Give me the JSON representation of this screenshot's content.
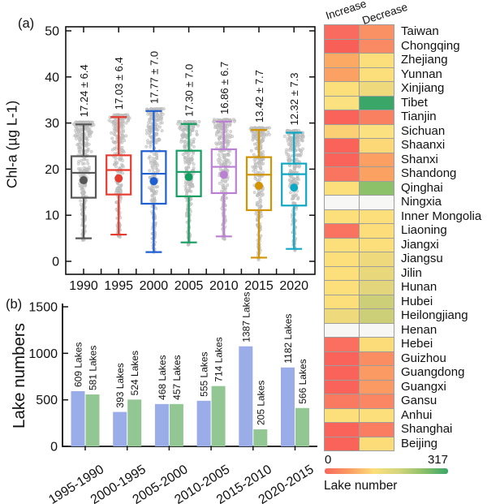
{
  "panels": {
    "a_label": "(a)",
    "b_label": "(b)"
  },
  "chart_data": [
    {
      "type": "box",
      "panel": "a",
      "ylabel": "Chl-a (µg L-1)",
      "ylim": [
        0,
        50
      ],
      "y_ticks": [
        0,
        10,
        20,
        30,
        40,
        50
      ],
      "categories": [
        "1990",
        "1995",
        "2000",
        "2005",
        "2010",
        "2015",
        "2020"
      ],
      "annotations": [
        "17.24 ± 6.4",
        "17.03 ± 6.4",
        "17.77 ± 7.0",
        "17.30 ± 7.0",
        "16.86 ± 6.7",
        "13.42 ± 7.7",
        "12.32 ± 7.3"
      ],
      "annotation_color": "#2b3fd1",
      "scatter_color": "#c6c6c6",
      "series": [
        {
          "year": "1990",
          "color": "#575757",
          "whisker_low": 5.0,
          "q1": 13.8,
          "median": 19.2,
          "q3": 22.8,
          "whisker_high": 29.7,
          "mean": 17.6
        },
        {
          "year": "1995",
          "color": "#e63c30",
          "whisker_low": 5.8,
          "q1": 14.5,
          "median": 19.8,
          "q3": 23.0,
          "whisker_high": 31.3,
          "mean": 18.0
        },
        {
          "year": "2000",
          "color": "#1e5fd2",
          "whisker_low": 2.0,
          "q1": 12.5,
          "median": 19.0,
          "q3": 23.9,
          "whisker_high": 32.6,
          "mean": 17.4
        },
        {
          "year": "2005",
          "color": "#129e60",
          "whisker_low": 4.1,
          "q1": 14.1,
          "median": 19.4,
          "q3": 24.0,
          "whisker_high": 29.8,
          "mean": 18.3
        },
        {
          "year": "2010",
          "color": "#bb7fd4",
          "whisker_low": 5.4,
          "q1": 14.8,
          "median": 20.5,
          "q3": 24.3,
          "whisker_high": 30.3,
          "mean": 18.8
        },
        {
          "year": "2015",
          "color": "#d29400",
          "whisker_low": 0.8,
          "q1": 11.1,
          "median": 18.8,
          "q3": 22.6,
          "whisker_high": 28.5,
          "mean": 16.4
        },
        {
          "year": "2020",
          "color": "#0ea8c5",
          "whisker_low": 2.7,
          "q1": 12.1,
          "median": 18.9,
          "q3": 21.2,
          "whisker_high": 27.9,
          "mean": 16.0
        }
      ]
    },
    {
      "type": "bar",
      "panel": "b",
      "ylabel": "Lake numbers",
      "ylim": [
        0,
        1500
      ],
      "y_ticks": [
        0,
        500,
        1000,
        1500
      ],
      "categories": [
        "1995-1990",
        "2000-1995",
        "2005-2000",
        "2010-2005",
        "2015-2010",
        "2020-2015"
      ],
      "series": [
        {
          "name": "increase",
          "color": "#9bade9",
          "label_color": "#5a6ec9",
          "values": [
            609,
            393,
            468,
            555,
            1387,
            1182
          ],
          "labels": [
            "609 Lakes",
            "393 Lakes",
            "468 Lakes",
            "555 Lakes",
            "1387 Lakes",
            "1182 Lakes"
          ],
          "bar_plot_values": [
            593,
            370,
            455,
            490,
            1075,
            848
          ]
        },
        {
          "name": "decrease",
          "color": "#92c794",
          "label_color": "#37864a",
          "values": [
            581,
            524,
            457,
            714,
            205,
            566
          ],
          "labels": [
            "581 Lakes",
            "524 Lakes",
            "457 Lakes",
            "714 Lakes",
            "205 Lakes",
            "566 Lakes"
          ],
          "bar_plot_values": [
            558,
            503,
            455,
            648,
            183,
            412
          ]
        }
      ]
    },
    {
      "type": "heatmap",
      "columns": [
        "Increase",
        "Decrease"
      ],
      "rows": [
        "Taiwan",
        "Chongqing",
        "Zhejiang",
        "Yunnan",
        "Xinjiang",
        "Tibet",
        "Tianjin",
        "Sichuan",
        "Shaanxi",
        "Shanxi",
        "Shandong",
        "Qinghai",
        "Ningxia",
        "Inner Mongolia",
        "Liaoning",
        "Jiangxi",
        "Jiangsu",
        "Jilin",
        "Hunan",
        "Hubei",
        "Heilongjiang",
        "Henan",
        "Hebei",
        "Guizhou",
        "Guangdong",
        "Guangxi",
        "Gansu",
        "Anhui",
        "Shanghai",
        "Beijing"
      ],
      "cell_colors": [
        [
          "#f96b5e",
          "#fa9164"
        ],
        [
          "#f85f57",
          "#fa8a63"
        ],
        [
          "#fba963",
          "#fcdf7b"
        ],
        [
          "#fba163",
          "#fcdf7b"
        ],
        [
          "#fcdf7b",
          "#eed97d"
        ],
        [
          "#fce180",
          "#3aa768"
        ],
        [
          "#f9635a",
          "#fa8062"
        ],
        [
          "#fbd074",
          "#fce180"
        ],
        [
          "#f9635a",
          "#fcd976"
        ],
        [
          "#f9635a",
          "#fb9f63"
        ],
        [
          "#fa7560",
          "#fba263"
        ],
        [
          "#fcdf7b",
          "#8cc169"
        ],
        [
          "#f7f7f5",
          "#f7f7f5"
        ],
        [
          "#fcdf7b",
          "#fcdf7b"
        ],
        [
          "#fa7260",
          "#fcdd7a"
        ],
        [
          "#fcdf7b",
          "#fcdf7b"
        ],
        [
          "#fcdf7b",
          "#eed97d"
        ],
        [
          "#fcdf7b",
          "#e9d77c"
        ],
        [
          "#fcdf7b",
          "#e2d57b"
        ],
        [
          "#fcdf7b",
          "#cdcf78"
        ],
        [
          "#eed97d",
          "#cdcf78"
        ],
        [
          "#f7f7f5",
          "#f7f7f5"
        ],
        [
          "#fa6f5f",
          "#fcdc79"
        ],
        [
          "#f9635a",
          "#fa8e62"
        ],
        [
          "#f9635a",
          "#fb9b63"
        ],
        [
          "#f9635a",
          "#fb9b63"
        ],
        [
          "#fa7a61",
          "#fa8663"
        ],
        [
          "#fcdf7b",
          "#fcdf7b"
        ],
        [
          "#f9635a",
          "#fa7c61"
        ],
        [
          "#f9635a",
          "#fcdc79"
        ]
      ],
      "colorbar": {
        "min": "0",
        "max": "317",
        "label": "Lake number",
        "gradient": [
          "#f8685c",
          "#fb9d63",
          "#fcdf7b",
          "#d3d57c",
          "#8cc169",
          "#3aa768"
        ]
      }
    }
  ]
}
